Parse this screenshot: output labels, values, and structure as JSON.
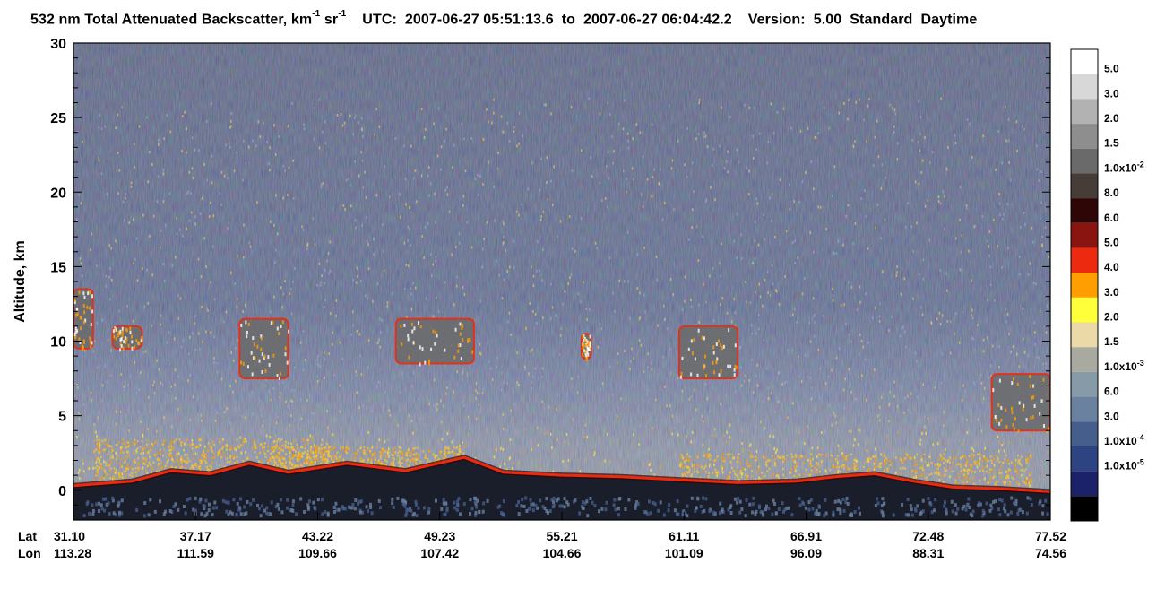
{
  "title": {
    "product": "532 nm Total Attenuated Backscatter, km",
    "unit_exp1": "-1",
    "unit_mid": " sr",
    "unit_exp2": "-1",
    "utc_label": "UTC:",
    "start_time": "2007-06-27 05:51:13.6",
    "to_word": "to",
    "end_time": "2007-06-27 06:04:42.2",
    "version_label": "Version:",
    "version": "5.00",
    "processing": "Standard",
    "day_night": "Daytime"
  },
  "chart_data": {
    "type": "heatmap",
    "ylabel": "Altitude, km",
    "ylim": [
      -2,
      30
    ],
    "y_ticks": [
      0,
      5,
      10,
      15,
      20,
      25,
      30
    ],
    "y_tick_labels": [
      "0",
      "5",
      "10",
      "15",
      "20",
      "25",
      "30"
    ],
    "x_row_labels": [
      "Lat",
      "Lon"
    ],
    "lat_labels": [
      "31.10",
      "37.17",
      "43.22",
      "49.23",
      "55.21",
      "61.11",
      "66.91",
      "72.48",
      "77.52"
    ],
    "lon_labels": [
      "113.28",
      "111.59",
      "109.66",
      "107.42",
      "104.66",
      "101.09",
      "96.09",
      "88.31",
      "74.56"
    ],
    "surface_altitude_km": [
      [
        0.0,
        0.3
      ],
      [
        0.06,
        0.6
      ],
      [
        0.1,
        1.3
      ],
      [
        0.14,
        1.1
      ],
      [
        0.18,
        1.8
      ],
      [
        0.22,
        1.2
      ],
      [
        0.28,
        1.8
      ],
      [
        0.34,
        1.3
      ],
      [
        0.4,
        2.2
      ],
      [
        0.44,
        1.2
      ],
      [
        0.5,
        1.0
      ],
      [
        0.56,
        0.9
      ],
      [
        0.62,
        0.7
      ],
      [
        0.68,
        0.5
      ],
      [
        0.74,
        0.6
      ],
      [
        0.78,
        0.9
      ],
      [
        0.82,
        1.1
      ],
      [
        0.86,
        0.6
      ],
      [
        0.9,
        0.2
      ],
      [
        0.95,
        0.1
      ],
      [
        1.0,
        -0.1
      ]
    ],
    "cloud_features": [
      {
        "lat_fraction": [
          0.0,
          0.02
        ],
        "altitude_km": [
          9.5,
          13.5
        ]
      },
      {
        "lat_fraction": [
          0.04,
          0.07
        ],
        "altitude_km": [
          9.5,
          11.0
        ]
      },
      {
        "lat_fraction": [
          0.17,
          0.22
        ],
        "altitude_km": [
          7.5,
          11.5
        ]
      },
      {
        "lat_fraction": [
          0.33,
          0.41
        ],
        "altitude_km": [
          8.5,
          11.5
        ]
      },
      {
        "lat_fraction": [
          0.52,
          0.53
        ],
        "altitude_km": [
          8.8,
          10.5
        ]
      },
      {
        "lat_fraction": [
          0.62,
          0.68
        ],
        "altitude_km": [
          7.5,
          11.0
        ]
      },
      {
        "lat_fraction": [
          0.94,
          1.0
        ],
        "altitude_km": [
          4.0,
          7.8
        ]
      }
    ],
    "colorbar": {
      "colors": [
        "#ffffff",
        "#d8d8d8",
        "#b2b2b2",
        "#8e8e8e",
        "#6a6a6a",
        "#463c38",
        "#2e0606",
        "#8a1410",
        "#ec2a10",
        "#ff9e00",
        "#ffff3a",
        "#ecd9a8",
        "#a8aaa0",
        "#869aa8",
        "#6a82a0",
        "#465e8c",
        "#2e4482",
        "#1c226a",
        "#000000"
      ],
      "labels": [
        "5.0",
        "3.0",
        "2.0",
        "1.5",
        "1.0x10",
        "8.0",
        "6.0",
        "5.0",
        "4.0",
        "3.0",
        "2.0",
        "1.5",
        "1.0x10",
        "6.0",
        "3.0",
        "1.0x10",
        "1.0x10",
        "",
        ""
      ],
      "label_exponents": [
        "",
        "",
        "",
        "",
        "-2",
        "",
        "",
        "",
        "",
        "",
        "",
        "",
        "-3",
        "",
        "",
        "-4",
        "-5",
        "",
        ""
      ]
    }
  }
}
